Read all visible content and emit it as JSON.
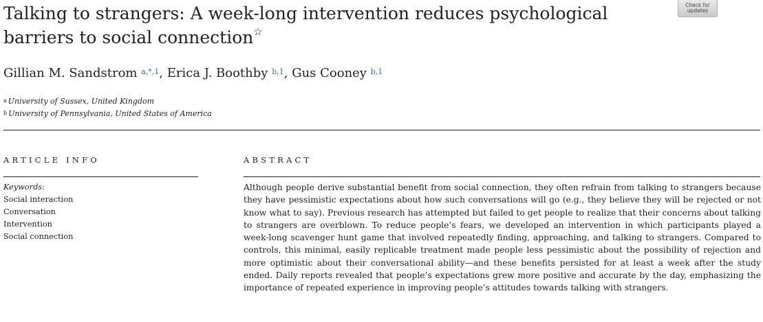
{
  "paper": {
    "title": "Talking to strangers: A week-long intervention reduces psychological barriers to social connection",
    "title_mark": "☆",
    "check_updates_label": [
      "Check for",
      "updates"
    ]
  },
  "authors": [
    {
      "name": "Gillian M. Sandstrom",
      "sup": "a,*,1",
      "separator": ", "
    },
    {
      "name": "Erica J. Boothby",
      "sup": "b,1",
      "separator": ", "
    },
    {
      "name": "Gus Cooney",
      "sup": "b,1",
      "separator": ""
    }
  ],
  "affiliations": [
    {
      "mark": "a",
      "text": "University of Sussex, United Kingdom"
    },
    {
      "mark": "b",
      "text": "University of Pennsylvania, United States of America"
    }
  ],
  "article_info": {
    "heading": "ARTICLE INFO",
    "keywords_label": "Keywords:",
    "keywords": [
      "Social interaction",
      "Conversation",
      "Intervention",
      "Social connection"
    ]
  },
  "abstract": {
    "heading": "ABSTRACT",
    "text": "Although people derive substantial benefit from social connection, they often refrain from talking to strangers because they have pessimistic expectations about how such conversations will go (e.g., they believe they will be rejected or not know what to say). Previous research has attempted but failed to get people to realize that their concerns about talking to strangers are overblown. To reduce people’s fears, we developed an intervention in which participants played a week-long scavenger hunt game that involved repeatedly finding, approaching, and talking to strangers. Compared to controls, this minimal, easily replicable treatment made people less pessimistic about the possibility of rejection and more optimistic about their conversational ability—and these benefits persisted for at least a week after the study ended. Daily reports revealed that people’s expectations grew more positive and accurate by the day, emphasizing the importance of repeated experience in improving people’s attitudes towards talking with strangers."
  }
}
